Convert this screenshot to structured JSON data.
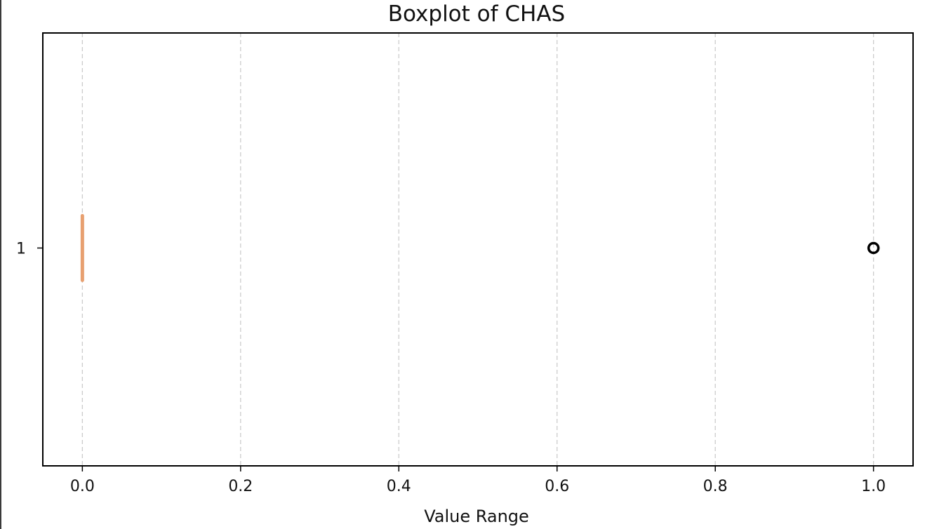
{
  "chart_data": {
    "type": "boxplot",
    "orientation": "horizontal",
    "title": "Boxplot of CHAS",
    "xlabel": "Value Range",
    "ylabel": "",
    "xlim": [
      -0.05,
      1.05
    ],
    "x_ticks": [
      0.0,
      0.2,
      0.4,
      0.6,
      0.8,
      1.0
    ],
    "x_tick_labels": [
      "0.0",
      "0.2",
      "0.4",
      "0.6",
      "0.8",
      "1.0"
    ],
    "y_tick_labels": [
      "1"
    ],
    "grid": "x-dashed",
    "boxes": [
      {
        "position": 1,
        "min": 0.0,
        "q1": 0.0,
        "median": 0.0,
        "q3": 0.0,
        "max": 0.0,
        "outliers": [
          1.0
        ]
      }
    ],
    "colors": {
      "median": "#e8a070",
      "grid": "#cccccc",
      "axes": "#000000",
      "outlier": "#000000"
    }
  }
}
